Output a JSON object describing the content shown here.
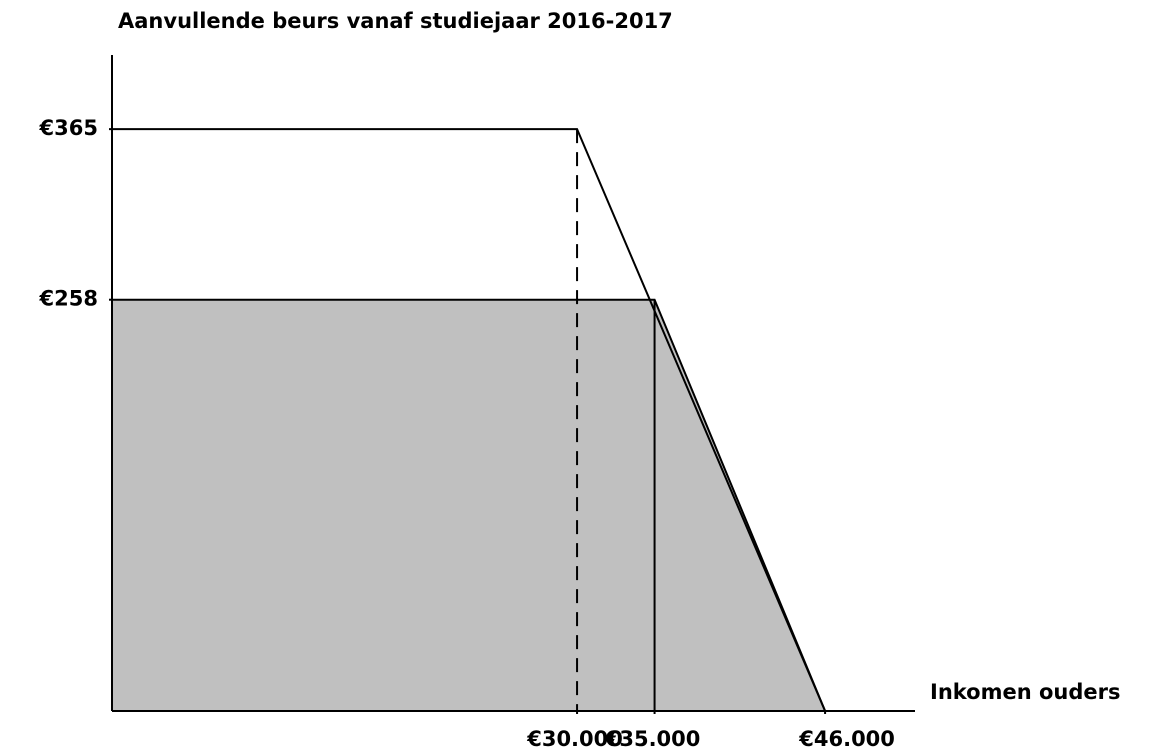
{
  "chart_data": {
    "type": "line",
    "title": "Aanvullende beurs vanaf studiejaar 2016-2017",
    "x_label": "Inkomen ouders",
    "series": [
      {
        "color": "#000000",
        "x": [
          0,
          30000,
          46000
        ],
        "values": [
          365,
          365,
          0
        ],
        "dropline": "dashed"
      },
      {
        "color": "#c0c0c0",
        "fill": true,
        "x": [
          0,
          35000,
          46000
        ],
        "values": [
          258,
          258,
          0
        ],
        "dropline": "solid"
      }
    ],
    "xlim": [
      0,
      51800
    ],
    "ylim": [
      0,
      411.5
    ],
    "xticks": [
      {
        "value": 30000,
        "label": "€30.000"
      },
      {
        "value": 35000,
        "label": "€35.000"
      },
      {
        "value": 46000,
        "label": "€46.000"
      }
    ],
    "yticks": [
      {
        "value": 365,
        "label": "€365"
      },
      {
        "value": 258,
        "label": "€258"
      }
    ],
    "grid": false
  }
}
